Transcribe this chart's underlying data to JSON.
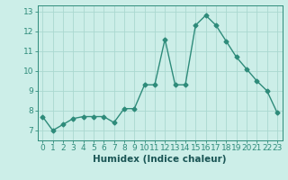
{
  "x": [
    0,
    1,
    2,
    3,
    4,
    5,
    6,
    7,
    8,
    9,
    10,
    11,
    12,
    13,
    14,
    15,
    16,
    17,
    18,
    19,
    20,
    21,
    22,
    23
  ],
  "y": [
    7.7,
    7.0,
    7.3,
    7.6,
    7.7,
    7.7,
    7.7,
    7.4,
    8.1,
    8.1,
    9.3,
    9.3,
    11.6,
    9.3,
    9.3,
    12.3,
    12.8,
    12.3,
    11.5,
    10.7,
    10.1,
    9.5,
    9.0,
    7.9
  ],
  "line_color": "#2e8b7a",
  "marker": "D",
  "markersize": 2.5,
  "linewidth": 1.0,
  "xlabel": "Humidex (Indice chaleur)",
  "xlim": [
    -0.5,
    23.5
  ],
  "ylim": [
    6.5,
    13.3
  ],
  "yticks": [
    7,
    8,
    9,
    10,
    11,
    12,
    13
  ],
  "xticks": [
    0,
    1,
    2,
    3,
    4,
    5,
    6,
    7,
    8,
    9,
    10,
    11,
    12,
    13,
    14,
    15,
    16,
    17,
    18,
    19,
    20,
    21,
    22,
    23
  ],
  "bg_color": "#cceee8",
  "grid_color": "#aad8d0",
  "label_color": "#1a5555",
  "xlabel_fontsize": 7.5,
  "tick_fontsize": 6.5
}
